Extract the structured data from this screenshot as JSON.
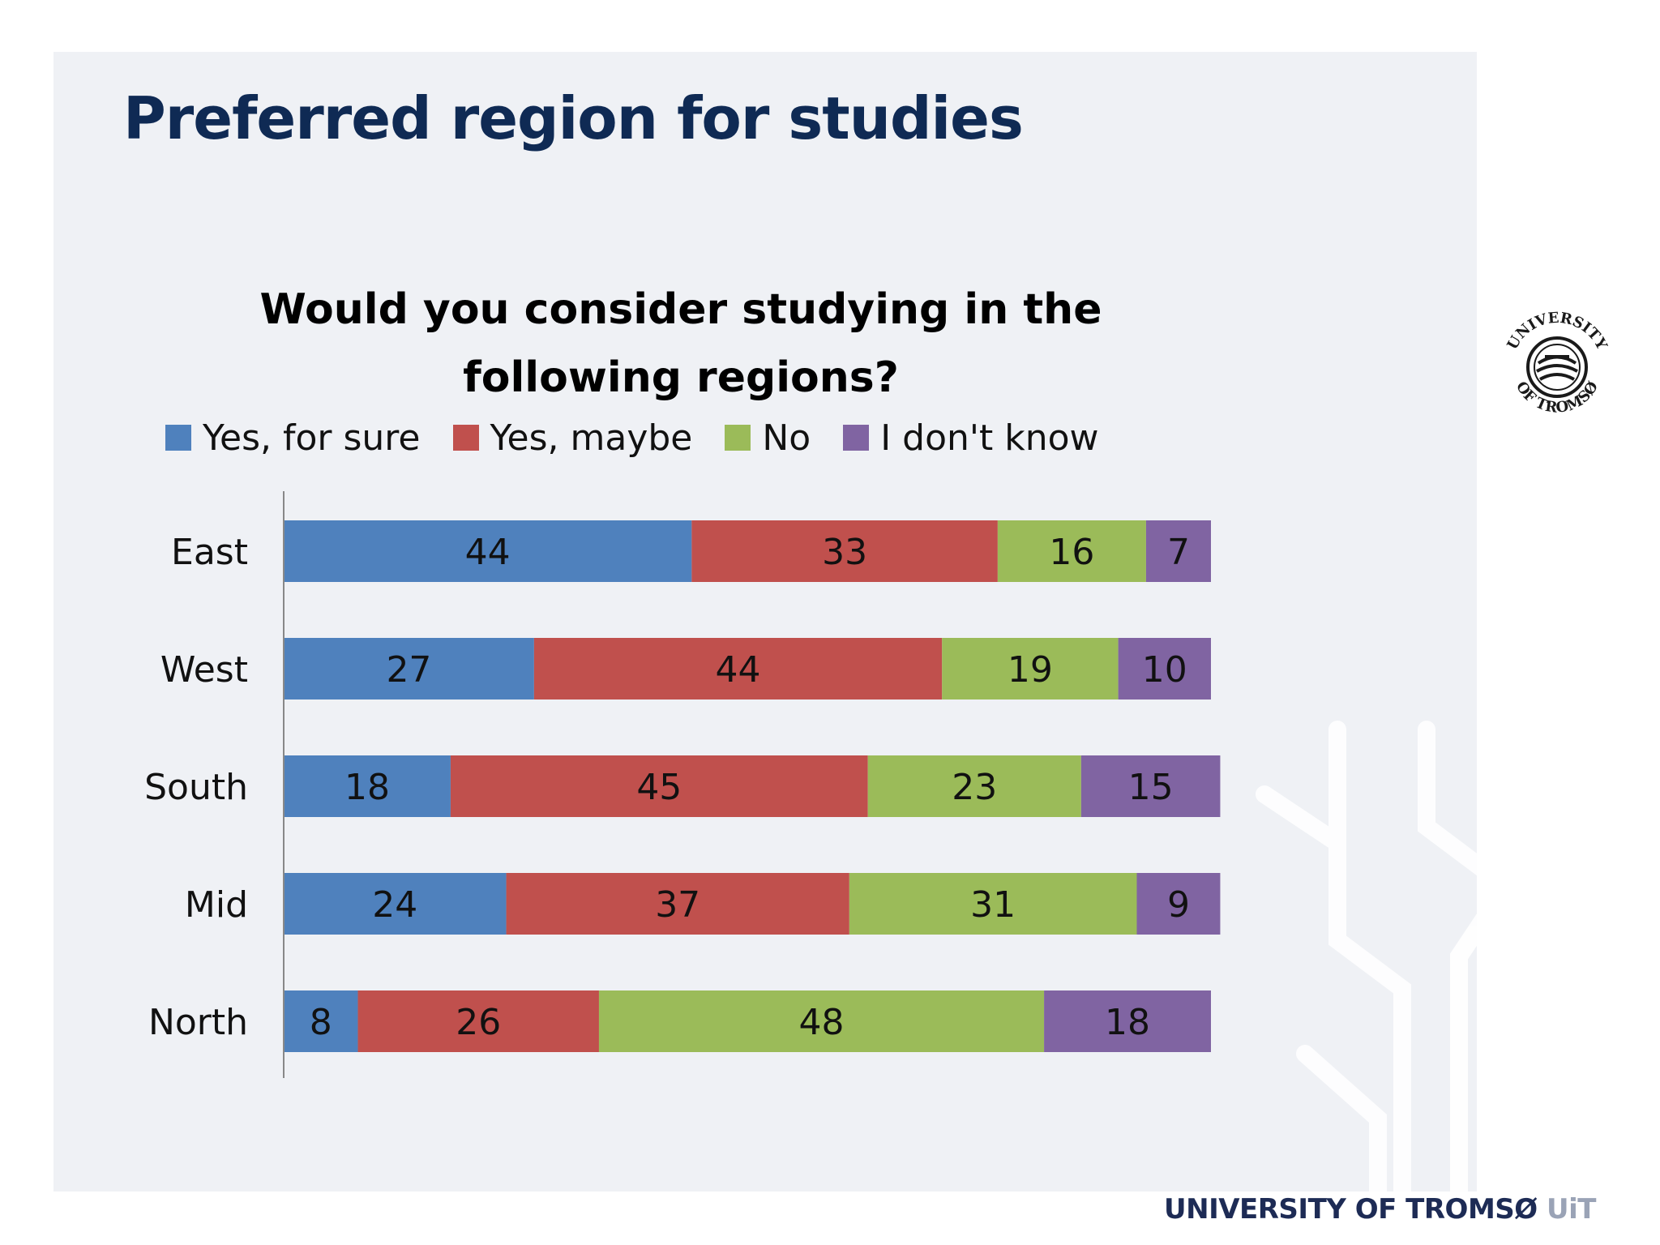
{
  "slide": {
    "title": "Preferred region for studies",
    "footer_name": "UNIVERSITY OF TROMSØ",
    "footer_abbr": "UiT",
    "logo_text_top": "UNIVERSITY",
    "logo_text_bottom": "OF TROMSØ"
  },
  "chart_data": {
    "type": "bar",
    "orientation": "horizontal",
    "stacked": true,
    "title": "Would you consider studying in the following regions?",
    "categories": [
      "East",
      "West",
      "South",
      "Mid",
      "North"
    ],
    "series": [
      {
        "name": "Yes, for sure",
        "color": "#4f81bd",
        "values": [
          44,
          27,
          18,
          24,
          8
        ]
      },
      {
        "name": "Yes, maybe",
        "color": "#c0504d",
        "values": [
          33,
          44,
          45,
          37,
          26
        ]
      },
      {
        "name": "No",
        "color": "#9bbb59",
        "values": [
          16,
          19,
          23,
          31,
          48
        ]
      },
      {
        "name": "I don't know",
        "color": "#8064a2",
        "values": [
          7,
          10,
          15,
          9,
          18
        ]
      }
    ],
    "xlim": [
      0,
      100
    ],
    "grid": false,
    "legend_position": "top",
    "data_labels": true
  }
}
